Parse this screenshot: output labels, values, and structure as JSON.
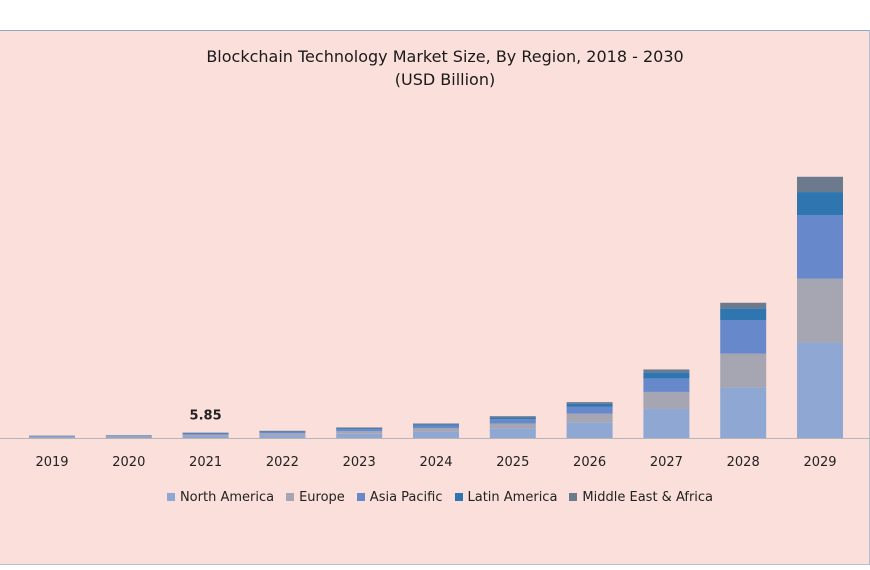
{
  "chart_data": {
    "type": "bar",
    "stacked": true,
    "title": "Blockchain Technology Market Size, By Region, 2018 - 2030",
    "subtitle": "(USD Billion)",
    "categories": [
      "2019",
      "2020",
      "2021",
      "2022",
      "2023",
      "2024",
      "2025",
      "2026",
      "2027",
      "2028",
      "2029"
    ],
    "series": [
      {
        "name": "North America",
        "color": "#8fa7d3",
        "values": [
          1.0,
          1.1,
          2.2,
          3.2,
          4.6,
          6.9,
          10.6,
          17.0,
          31.4,
          54.5,
          103.3
        ]
      },
      {
        "name": "Europe",
        "color": "#a6a6b3",
        "values": [
          0.6,
          0.7,
          1.5,
          1.9,
          2.7,
          3.6,
          5.1,
          9.4,
          18.4,
          36.7,
          68.9
        ]
      },
      {
        "name": "Asia Pacific",
        "color": "#6789cb",
        "values": [
          0.5,
          0.6,
          1.2,
          1.4,
          2.2,
          2.9,
          4.6,
          7.3,
          14.6,
          36.0,
          68.9
        ]
      },
      {
        "name": "Latin America",
        "color": "#2f76b0",
        "values": [
          0.3,
          0.4,
          0.6,
          0.8,
          1.2,
          1.5,
          2.2,
          3.4,
          6.7,
          13.0,
          24.8
        ]
      },
      {
        "name": "Middle East & Africa",
        "color": "#6c7a8e",
        "values": [
          0.2,
          0.2,
          0.35,
          0.5,
          0.7,
          0.8,
          1.1,
          1.7,
          3.0,
          6.0,
          16.5
        ]
      }
    ],
    "data_labels": [
      {
        "category": "2021",
        "text": "5.85"
      }
    ],
    "ylim": [
      0,
      400
    ],
    "grid": false,
    "legend_position": "bottom"
  }
}
